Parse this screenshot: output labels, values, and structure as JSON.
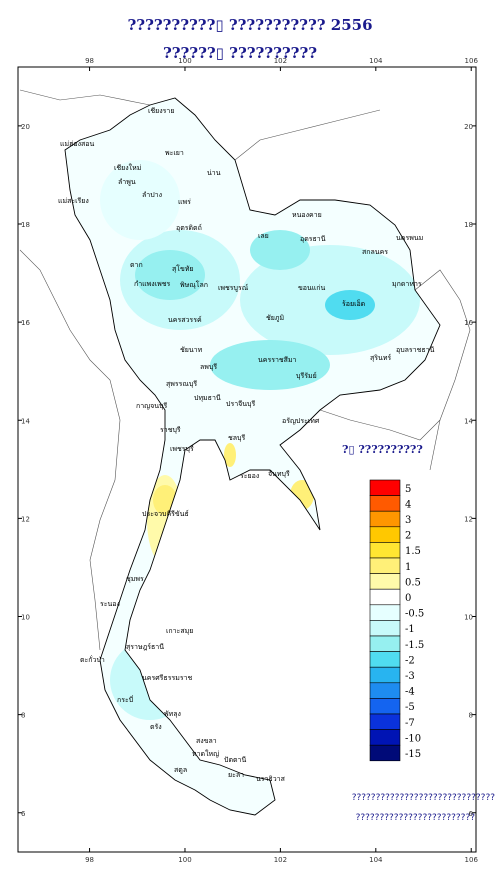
{
  "header": {
    "title_line1": "??????????▯  ??????????? 2556",
    "title_line2": "??????▯  ??????????"
  },
  "map": {
    "xlim": [
      96.5,
      106.1
    ],
    "ylim": [
      5.2,
      21.2
    ],
    "xticks": [
      98,
      100,
      102,
      104,
      106
    ],
    "yticks": [
      6,
      8,
      10,
      12,
      14,
      16,
      18,
      20
    ],
    "provinces": [
      "แม่ฮ่องสอน",
      "เชียงราย",
      "พะเยา",
      "เชียงใหม่",
      "น่าน",
      "ลำพูน",
      "ลำปาง",
      "แม่สะเรียง",
      "แพร่",
      "อุตรดิตถ์",
      "หนองคาย",
      "อุดรธานี",
      "เลย",
      "สกลนคร",
      "นครพนม",
      "ตาก",
      "สุโขทัย",
      "มุกดาหาร",
      "กำแพงเพชร",
      "พิษณุโลก",
      "เพชรบูรณ์",
      "ขอนแก่น",
      "ร้อยเอ็ด",
      "นครสวรรค์",
      "ชัยภูมิ",
      "อุบลราชธานี",
      "ชัยนาท",
      "ลพบุรี",
      "สุรินทร์",
      "นครราชสีมา",
      "บุรีรัมย์",
      "สุพรรณบุรี",
      "ปทุมธานี",
      "ปราจีนบุรี",
      "กาญจนบุรี",
      "อรัญประเทศ",
      "ราชบุรี",
      "ชลบุรี",
      "เพชรบุรี",
      "ระยอง",
      "จันทบุรี",
      "ประจวบคีรีขันธ์",
      "ชุมพร",
      "ระนอง",
      "สุราษฎร์ธานี",
      "เกาะสมุย",
      "ตะกั่วป่า",
      "นครศรีธรรมราช",
      "กระบี่",
      "ตรัง",
      "พัทลุง",
      "สงขลา",
      "หาดใหญ่",
      "สตูล",
      "ปัตตานี",
      "ยะลา",
      "นราธิวาส"
    ]
  },
  "legend": {
    "title": "?▯ ??????????",
    "levels": [
      {
        "label": 5,
        "color": "#ff0000"
      },
      {
        "label": 4,
        "color": "#ff5a00"
      },
      {
        "label": 3,
        "color": "#ff9600"
      },
      {
        "label": 2,
        "color": "#ffc800"
      },
      {
        "label": 1.5,
        "color": "#ffe632"
      },
      {
        "label": 1,
        "color": "#fff078"
      },
      {
        "label": 0.5,
        "color": "#fffaaa"
      },
      {
        "label": 0,
        "color": "#ffffff"
      },
      {
        "label": -0.5,
        "color": "#e6ffff"
      },
      {
        "label": -1,
        "color": "#c8fafa"
      },
      {
        "label": -1.5,
        "color": "#96f0f0"
      },
      {
        "label": -2,
        "color": "#50dcf0"
      },
      {
        "label": -3,
        "color": "#28b4f0"
      },
      {
        "label": -4,
        "color": "#1e8cf0"
      },
      {
        "label": -5,
        "color": "#1464f0"
      },
      {
        "label": -7,
        "color": "#0a32dc"
      },
      {
        "label": -10,
        "color": "#0014b4"
      },
      {
        "label": -15,
        "color": "#000a78"
      }
    ]
  },
  "note": {
    "line1": "??????????????????????????????",
    "line2": "?????????????????????????"
  }
}
